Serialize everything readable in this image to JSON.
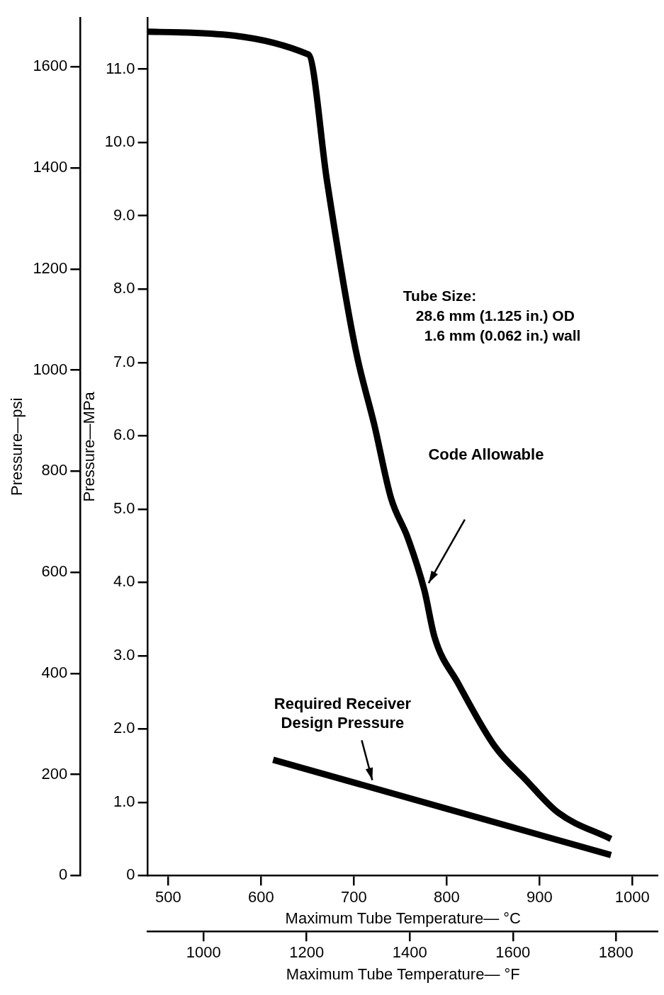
{
  "chart_data": {
    "type": "line",
    "xlabel": "Maximum Tube Temperature— °C",
    "x2label": "Maximum Tube Temperature— °F",
    "ylabel": "Pressure—MPa",
    "y2label": "Pressure—psi",
    "xlim": [
      478,
      1028
    ],
    "xticks": [
      500,
      600,
      700,
      800,
      900,
      1000
    ],
    "x2lim": [
      892,
      1882
    ],
    "x2ticks": [
      1000,
      1200,
      1400,
      1600,
      1800
    ],
    "ylim": [
      0,
      11.7
    ],
    "yticks": [
      0,
      {
        "value": 1,
        "label": "1.0"
      },
      {
        "value": 2,
        "label": "2.0"
      },
      {
        "value": 3,
        "label": "3.0"
      },
      {
        "value": 4,
        "label": "4.0"
      },
      {
        "value": 5,
        "label": "5.0"
      },
      {
        "value": 6,
        "label": "6.0"
      },
      {
        "value": 7,
        "label": "7.0"
      },
      {
        "value": 8,
        "label": "8.0"
      },
      {
        "value": 9,
        "label": "9.0"
      },
      {
        "value": 10,
        "label": "10.0"
      },
      {
        "value": 11,
        "label": "11.0"
      }
    ],
    "y2lim": [
      0,
      1697
    ],
    "y2ticks": [
      0,
      200,
      400,
      600,
      800,
      1000,
      1200,
      1400,
      1600
    ],
    "grid": false,
    "legend": false,
    "marker": "none",
    "line_style": "solid",
    "annotations": [
      "Tube Size:\n28.6 mm (1.125 in.) OD\n1.6 mm (0.062 in.) wall"
    ],
    "series": [
      {
        "name": "Code Allowable",
        "color": "#000000",
        "x": [
          478,
          651,
          671,
          693,
          704,
          722,
          740,
          758,
          776,
          787,
          812,
          852,
          885,
          920,
          977
        ],
        "values": [
          11.51,
          11.2,
          9.48,
          7.77,
          7.05,
          6.15,
          5.15,
          4.61,
          3.89,
          3.25,
          2.63,
          1.76,
          1.31,
          0.86,
          0.5
        ]
      },
      {
        "name": "Required Receiver Design Pressure",
        "color": "#000000",
        "x": [
          613,
          977
        ],
        "values": [
          1.58,
          0.28
        ]
      }
    ]
  }
}
